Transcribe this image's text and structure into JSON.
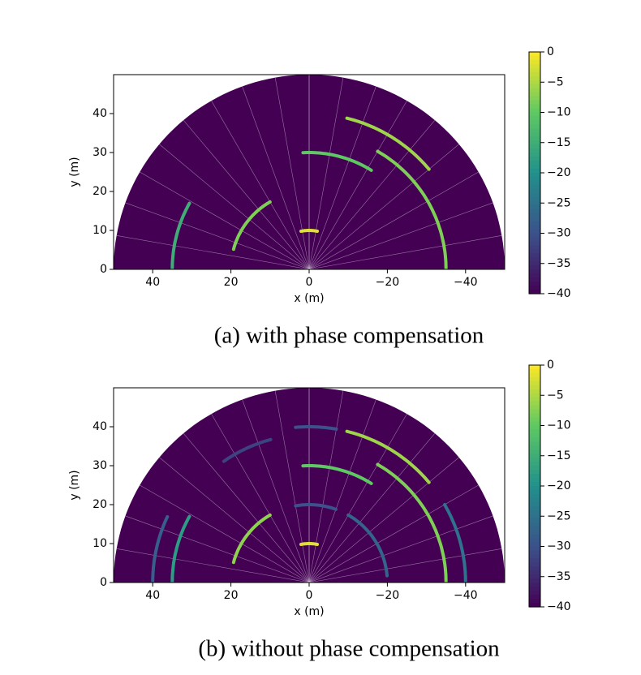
{
  "chart_data": [
    {
      "type": "polar-heatmap",
      "caption": "(a) with phase compensation",
      "xlabel": "x (m)",
      "ylabel": "y (m)",
      "xlim": [
        50,
        -50
      ],
      "ylim": [
        0,
        50
      ],
      "xticks": [
        40,
        20,
        0,
        {
          "value": -20,
          "label": "−20"
        },
        {
          "value": -40,
          "label": "−40"
        }
      ],
      "yticks": [
        0,
        10,
        20,
        30,
        40
      ],
      "colormap": "viridis",
      "clim": [
        -40,
        0
      ],
      "cticks": [
        0,
        {
          "value": -5,
          "label": "−5"
        },
        {
          "value": -10,
          "label": "−10"
        },
        {
          "value": -15,
          "label": "−15"
        },
        {
          "value": -20,
          "label": "−20"
        },
        {
          "value": -25,
          "label": "−25"
        },
        {
          "value": -30,
          "label": "−30"
        },
        {
          "value": -35,
          "label": "−35"
        },
        {
          "value": -40,
          "label": "−40"
        }
      ],
      "arcs": [
        {
          "r": 10,
          "theta": [
            78,
            102
          ],
          "value": -2
        },
        {
          "r": 20,
          "theta": [
            15,
            60
          ],
          "value": -8
        },
        {
          "r": 35,
          "theta": [
            0,
            29
          ],
          "value": -15
        },
        {
          "r": 30,
          "theta": [
            87,
            122
          ],
          "value": -10
        },
        {
          "r": 40,
          "theta": [
            104,
            140
          ],
          "value": -6
        },
        {
          "r": 35,
          "theta": [
            120,
            180
          ],
          "value": -8
        }
      ]
    },
    {
      "type": "polar-heatmap",
      "caption": "(b) without phase compensation",
      "xlabel": "x (m)",
      "ylabel": "y (m)",
      "xlim": [
        50,
        -50
      ],
      "ylim": [
        0,
        50
      ],
      "xticks": [
        40,
        20,
        0,
        {
          "value": -20,
          "label": "−20"
        },
        {
          "value": -40,
          "label": "−40"
        }
      ],
      "yticks": [
        0,
        10,
        20,
        30,
        40
      ],
      "colormap": "viridis",
      "clim": [
        -40,
        0
      ],
      "cticks": [
        0,
        {
          "value": -5,
          "label": "−5"
        },
        {
          "value": -10,
          "label": "−10"
        },
        {
          "value": -15,
          "label": "−15"
        },
        {
          "value": -20,
          "label": "−20"
        },
        {
          "value": -25,
          "label": "−25"
        },
        {
          "value": -30,
          "label": "−30"
        },
        {
          "value": -35,
          "label": "−35"
        },
        {
          "value": -40,
          "label": "−40"
        }
      ],
      "arcs": [
        {
          "r": 10,
          "theta": [
            78,
            102
          ],
          "value": -2
        },
        {
          "r": 20,
          "theta": [
            15,
            60
          ],
          "value": -7
        },
        {
          "r": 35,
          "theta": [
            0,
            29
          ],
          "value": -18
        },
        {
          "r": 40,
          "theta": [
            0,
            25
          ],
          "value": -28
        },
        {
          "r": 30,
          "theta": [
            87,
            122
          ],
          "value": -10
        },
        {
          "r": 40,
          "theta": [
            104,
            140
          ],
          "value": -6
        },
        {
          "r": 35,
          "theta": [
            120,
            180
          ],
          "value": -8
        },
        {
          "r": 40,
          "theta": [
            85,
            100
          ],
          "value": -30
        },
        {
          "r": 20,
          "theta": [
            80,
            110
          ],
          "value": -30
        },
        {
          "r": 20,
          "theta": [
            120,
            175
          ],
          "value": -27
        },
        {
          "r": 40,
          "theta": [
            150,
            180
          ],
          "value": -25
        },
        {
          "r": 38,
          "theta": [
            55,
            75
          ],
          "value": -32
        }
      ]
    }
  ]
}
